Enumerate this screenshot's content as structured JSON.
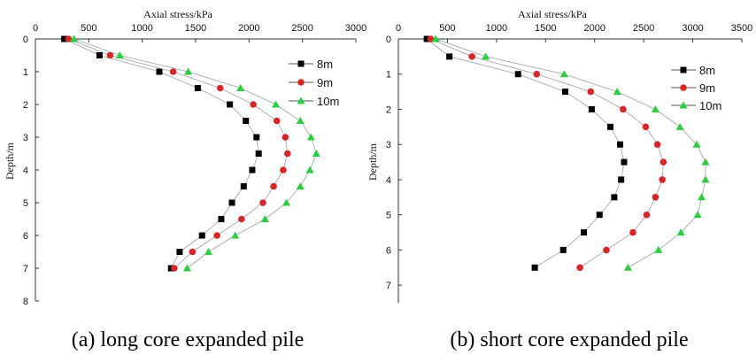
{
  "figure": {
    "captions": [
      "(a) long core expanded pile",
      "(b) short core expanded pile"
    ]
  },
  "chart_data": [
    {
      "type": "line",
      "xlabel": "Axial stress/kPa",
      "ylabel": "Depth/m",
      "xlim": [
        0,
        3000
      ],
      "ylim": [
        0,
        8
      ],
      "x_axis_position": "top",
      "y_inverted": true,
      "xticks": [
        0,
        500,
        1000,
        1500,
        2000,
        2500,
        3000
      ],
      "yticks": [
        0,
        1,
        2,
        3,
        4,
        5,
        6,
        7,
        8
      ],
      "legend_position": "top-right",
      "series": [
        {
          "name": "8m",
          "marker": "square",
          "color": "#000000",
          "points": [
            [
              270,
              0
            ],
            [
              600,
              0.5
            ],
            [
              1160,
              1
            ],
            [
              1520,
              1.5
            ],
            [
              1820,
              2
            ],
            [
              1970,
              2.5
            ],
            [
              2070,
              3
            ],
            [
              2090,
              3.5
            ],
            [
              2030,
              4
            ],
            [
              1950,
              4.5
            ],
            [
              1840,
              5
            ],
            [
              1740,
              5.5
            ],
            [
              1560,
              6
            ],
            [
              1350,
              6.5
            ],
            [
              1270,
              7
            ]
          ]
        },
        {
          "name": "9m",
          "marker": "circle",
          "color": "#d62728",
          "points": [
            [
              310,
              0
            ],
            [
              700,
              0.5
            ],
            [
              1290,
              1
            ],
            [
              1730,
              1.5
            ],
            [
              2040,
              2
            ],
            [
              2260,
              2.5
            ],
            [
              2340,
              3
            ],
            [
              2360,
              3.5
            ],
            [
              2320,
              4
            ],
            [
              2230,
              4.5
            ],
            [
              2130,
              5
            ],
            [
              1930,
              5.5
            ],
            [
              1700,
              6
            ],
            [
              1470,
              6.5
            ],
            [
              1300,
              7
            ]
          ]
        },
        {
          "name": "10m",
          "marker": "triangle",
          "color": "#2ecc40",
          "points": [
            [
              360,
              0
            ],
            [
              790,
              0.5
            ],
            [
              1430,
              1
            ],
            [
              1920,
              1.5
            ],
            [
              2250,
              2
            ],
            [
              2480,
              2.5
            ],
            [
              2580,
              3
            ],
            [
              2630,
              3.5
            ],
            [
              2570,
              4
            ],
            [
              2480,
              4.5
            ],
            [
              2350,
              5
            ],
            [
              2150,
              5.5
            ],
            [
              1870,
              6
            ],
            [
              1620,
              6.5
            ],
            [
              1420,
              7
            ]
          ]
        }
      ]
    },
    {
      "type": "line",
      "xlabel": "Axial stress/kPa",
      "ylabel": "Depth/m",
      "xlim": [
        0,
        3500
      ],
      "ylim": [
        0,
        7.5
      ],
      "x_axis_position": "top",
      "y_inverted": true,
      "xticks": [
        0,
        500,
        1000,
        1500,
        2000,
        2500,
        3000,
        3500
      ],
      "yticks": [
        0,
        1,
        2,
        3,
        4,
        5,
        6,
        7
      ],
      "legend_position": "top-right",
      "series": [
        {
          "name": "8m",
          "marker": "square",
          "color": "#000000",
          "points": [
            [
              290,
              0
            ],
            [
              520,
              0.5
            ],
            [
              1220,
              1
            ],
            [
              1700,
              1.5
            ],
            [
              1970,
              2
            ],
            [
              2160,
              2.5
            ],
            [
              2260,
              3
            ],
            [
              2300,
              3.5
            ],
            [
              2270,
              4
            ],
            [
              2200,
              4.5
            ],
            [
              2050,
              5
            ],
            [
              1890,
              5.5
            ],
            [
              1680,
              6
            ],
            [
              1390,
              6.5
            ]
          ]
        },
        {
          "name": "9m",
          "marker": "circle",
          "color": "#d62728",
          "points": [
            [
              330,
              0
            ],
            [
              750,
              0.5
            ],
            [
              1410,
              1
            ],
            [
              1960,
              1.5
            ],
            [
              2290,
              2
            ],
            [
              2520,
              2.5
            ],
            [
              2640,
              3
            ],
            [
              2700,
              3.5
            ],
            [
              2690,
              4
            ],
            [
              2620,
              4.5
            ],
            [
              2530,
              5
            ],
            [
              2390,
              5.5
            ],
            [
              2120,
              6
            ],
            [
              1850,
              6.5
            ]
          ]
        },
        {
          "name": "10m",
          "marker": "triangle",
          "color": "#2ecc40",
          "points": [
            [
              380,
              0
            ],
            [
              890,
              0.5
            ],
            [
              1690,
              1
            ],
            [
              2230,
              1.5
            ],
            [
              2620,
              2
            ],
            [
              2870,
              2.5
            ],
            [
              3040,
              3
            ],
            [
              3130,
              3.5
            ],
            [
              3130,
              4
            ],
            [
              3090,
              4.5
            ],
            [
              3050,
              5
            ],
            [
              2880,
              5.5
            ],
            [
              2650,
              6
            ],
            [
              2340,
              6.5
            ]
          ]
        }
      ]
    }
  ]
}
